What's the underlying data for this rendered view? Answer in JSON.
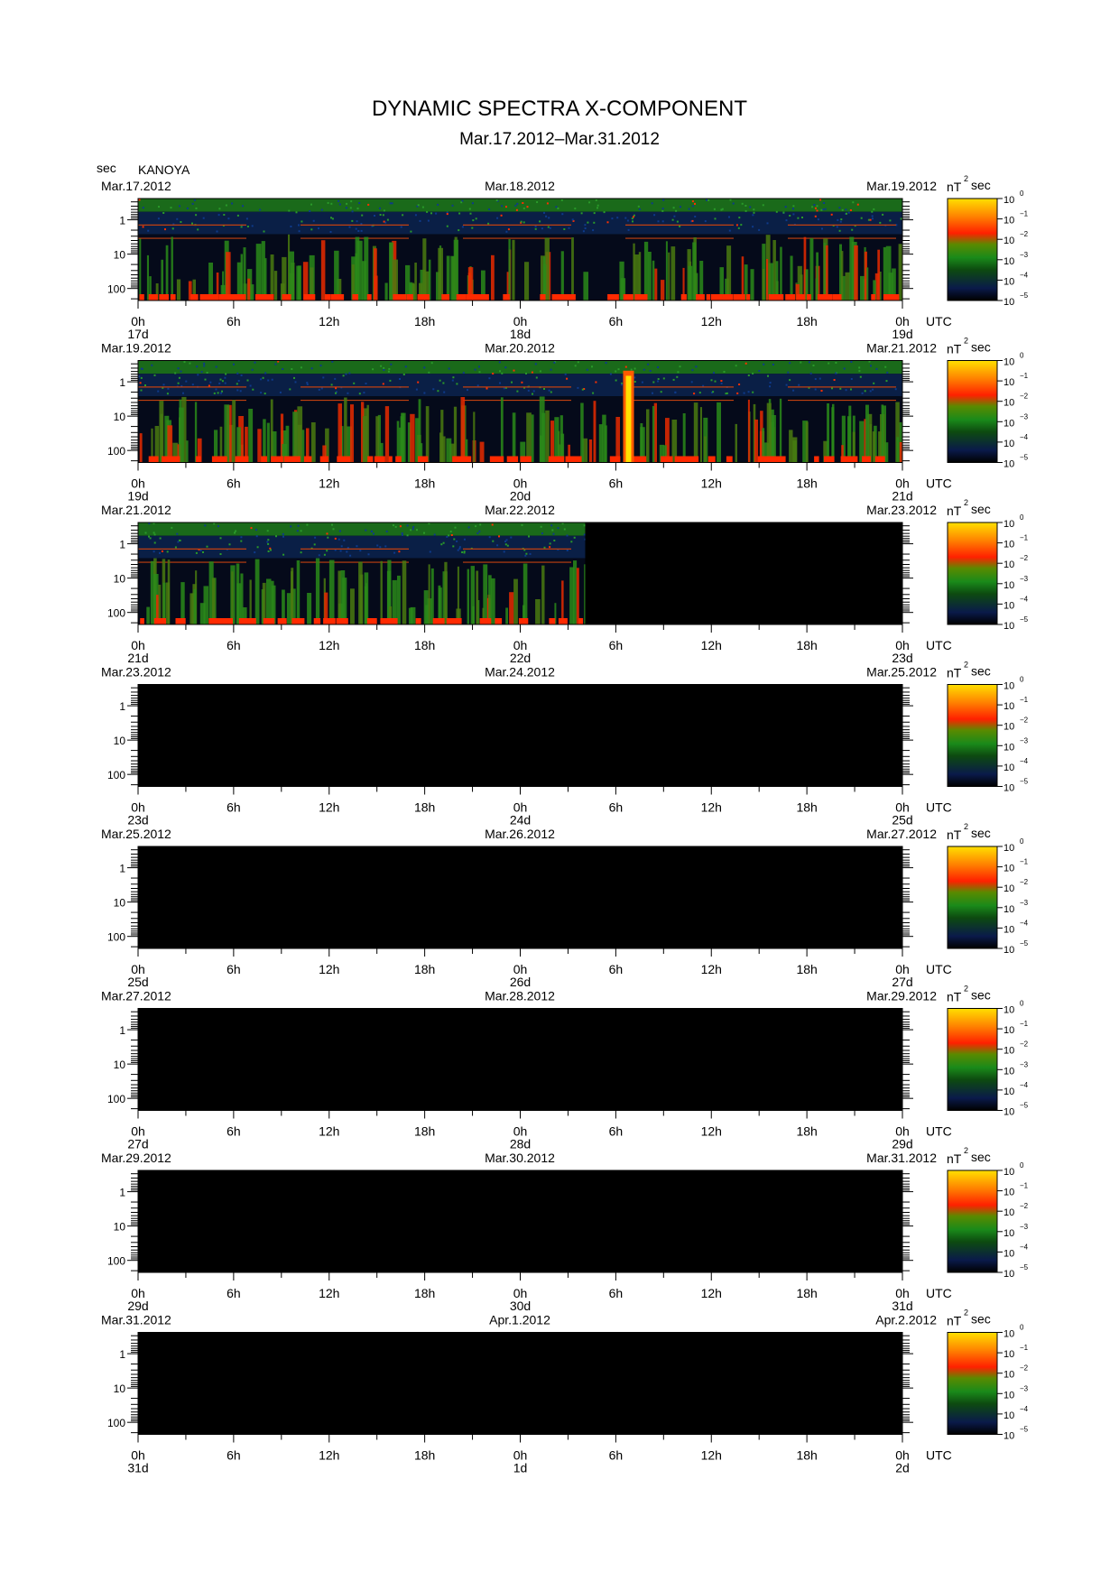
{
  "title": "DYNAMIC SPECTRA X-COMPONENT",
  "subtitle": "Mar.17.2012–Mar.31.2012",
  "station": "KANOYA",
  "y_unit": "sec",
  "colorbar_unit_base": "nT",
  "colorbar_unit_exp": "2",
  "colorbar_unit_suffix": "sec",
  "utc_label": "UTC",
  "colors": {
    "colormap": [
      "#000000",
      "#0a1a4a",
      "#0d4a10",
      "#1a8a1a",
      "#5a8a00",
      "#ff2000",
      "#ff8000",
      "#ffe000"
    ],
    "background": "#ffffff",
    "nodata": "#000000"
  },
  "chart_data": {
    "type": "heatmap",
    "series_kind": "dynamic spectrogram",
    "y_axis": {
      "scale": "log",
      "range_sec": [
        1,
        100
      ],
      "ticks": [
        "1",
        "10",
        "100"
      ],
      "inverted": true
    },
    "colorbar": {
      "scale": "log",
      "range": [
        1e-05,
        1
      ],
      "tick_base": "10",
      "tick_exps": [
        "0",
        "−1",
        "−2",
        "−3",
        "−4",
        "−5"
      ]
    },
    "x_tick_labels": [
      "0h",
      "6h",
      "12h",
      "18h",
      "0h",
      "6h",
      "12h",
      "18h",
      "0h"
    ],
    "panels": [
      {
        "left_date": "Mar.17.2012",
        "mid_date": "Mar.18.2012",
        "right_date": "Mar.19.2012",
        "day_labels": [
          "17d",
          "18d",
          "19d"
        ],
        "data_fraction": 1.0,
        "event_hours": []
      },
      {
        "left_date": "Mar.19.2012",
        "mid_date": "Mar.20.2012",
        "right_date": "Mar.21.2012",
        "day_labels": [
          "19d",
          "20d",
          "21d"
        ],
        "data_fraction": 1.0,
        "event_hours": [
          30.8
        ]
      },
      {
        "left_date": "Mar.21.2012",
        "mid_date": "Mar.22.2012",
        "right_date": "Mar.23.2012",
        "day_labels": [
          "21d",
          "22d",
          "23d"
        ],
        "data_fraction": 0.585,
        "event_hours": []
      },
      {
        "left_date": "Mar.23.2012",
        "mid_date": "Mar.24.2012",
        "right_date": "Mar.25.2012",
        "day_labels": [
          "23d",
          "24d",
          "25d"
        ],
        "data_fraction": 0,
        "event_hours": []
      },
      {
        "left_date": "Mar.25.2012",
        "mid_date": "Mar.26.2012",
        "right_date": "Mar.27.2012",
        "day_labels": [
          "25d",
          "26d",
          "27d"
        ],
        "data_fraction": 0,
        "event_hours": []
      },
      {
        "left_date": "Mar.27.2012",
        "mid_date": "Mar.28.2012",
        "right_date": "Mar.29.2012",
        "day_labels": [
          "27d",
          "28d",
          "29d"
        ],
        "data_fraction": 0,
        "event_hours": []
      },
      {
        "left_date": "Mar.29.2012",
        "mid_date": "Mar.30.2012",
        "right_date": "Mar.31.2012",
        "day_labels": [
          "29d",
          "30d",
          "31d"
        ],
        "data_fraction": 0,
        "event_hours": []
      },
      {
        "left_date": "Mar.31.2012",
        "mid_date": "Apr.1.2012",
        "right_date": "Apr.2.2012",
        "day_labels": [
          "31d",
          "1d",
          "2d"
        ],
        "data_fraction": 0,
        "event_hours": []
      }
    ]
  }
}
